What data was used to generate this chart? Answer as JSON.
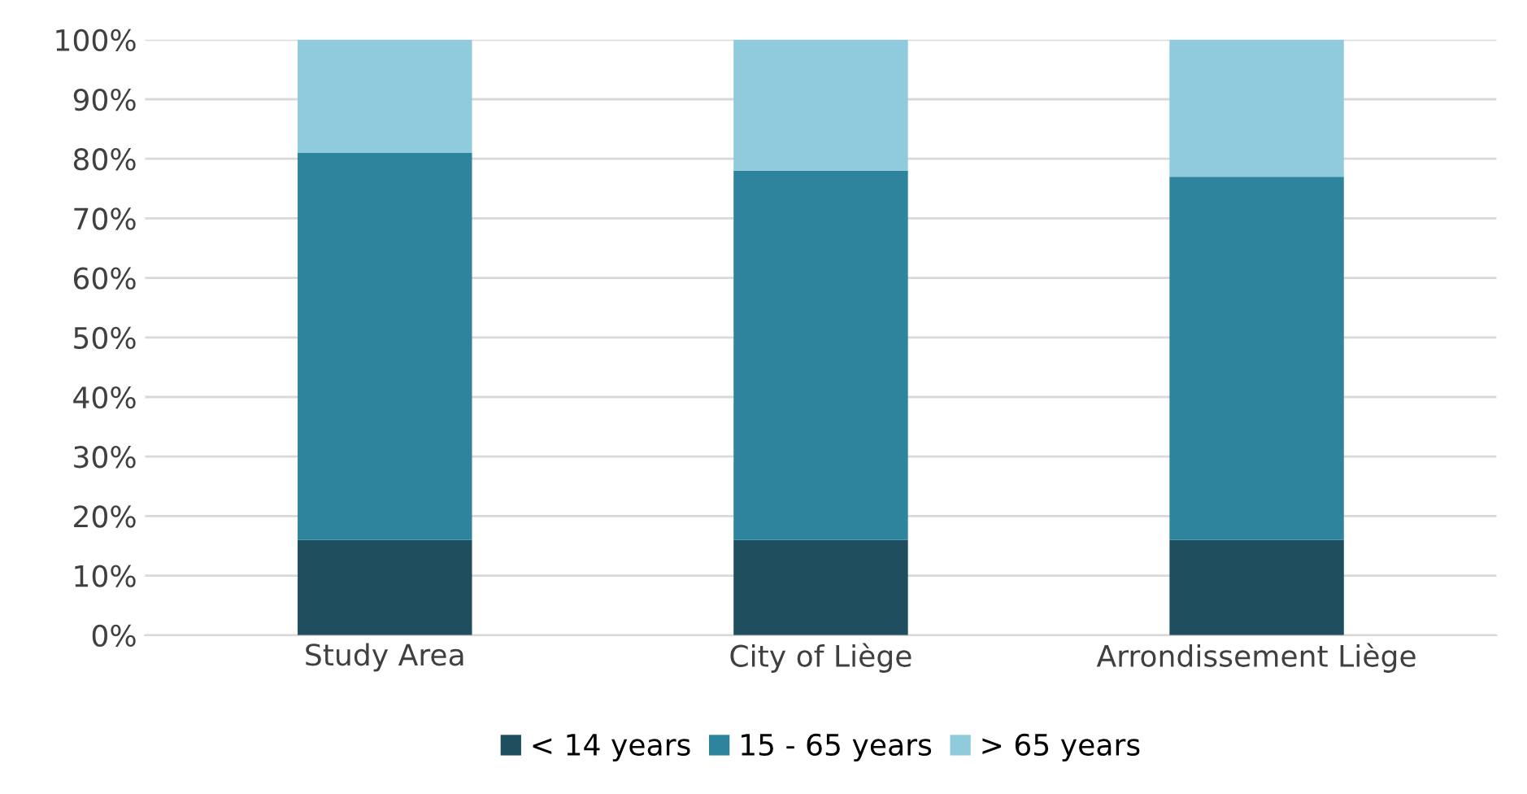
{
  "chart_data": {
    "type": "bar",
    "stacked": true,
    "categories": [
      "Study Area",
      "City of Liège",
      "Arrondissement Liège"
    ],
    "series": [
      {
        "name": "< 14 years",
        "color": "#1f4e5f",
        "values": [
          16,
          16,
          16
        ]
      },
      {
        "name": "15 - 65 years",
        "color": "#2e849c",
        "values": [
          65,
          62,
          61
        ]
      },
      {
        "name": "> 65 years",
        "color": "#8fcbdc",
        "values": [
          19,
          22,
          23
        ]
      }
    ],
    "ylim": [
      0,
      100
    ],
    "yticks": [
      {
        "value": 0,
        "label": "0%"
      },
      {
        "value": 10,
        "label": "10%"
      },
      {
        "value": 20,
        "label": "20%"
      },
      {
        "value": 30,
        "label": "30%"
      },
      {
        "value": 40,
        "label": "40%"
      },
      {
        "value": 50,
        "label": "50%"
      },
      {
        "value": 60,
        "label": "60%"
      },
      {
        "value": 70,
        "label": "70%"
      },
      {
        "value": 80,
        "label": "80%"
      },
      {
        "value": 90,
        "label": "90%"
      },
      {
        "value": 100,
        "label": "100%"
      }
    ],
    "grid": "y",
    "legend": "bottom"
  }
}
